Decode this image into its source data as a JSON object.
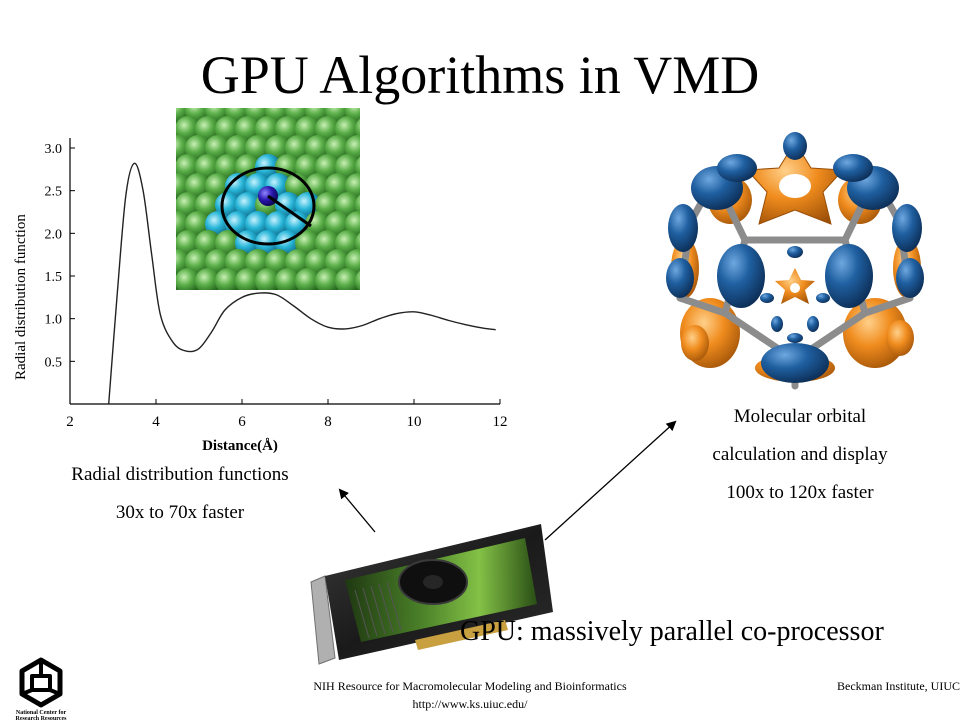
{
  "slide": {
    "title": "GPU Algorithms in VMD",
    "rdf_caption_line1": "Radial distribution functions",
    "rdf_caption_line2": "30x to 70x faster",
    "mo_caption_line1": "Molecular orbital",
    "mo_caption_line2": "calculation and display",
    "mo_caption_line3": "100x to 120x faster",
    "gpu_caption": "GPU: massively parallel co-processor"
  },
  "chart_data": {
    "type": "line",
    "xlabel": "Distance(Å)",
    "ylabel": "Radial distribution function",
    "xlim": [
      2,
      12
    ],
    "ylim": [
      0,
      3.0
    ],
    "x_ticks": [
      "2",
      "4",
      "6",
      "8",
      "10",
      "12"
    ],
    "y_ticks": [
      "0.5",
      "1.0",
      "1.5",
      "2.0",
      "2.5",
      "3.0"
    ],
    "series": [
      {
        "x": [
          2.9,
          3.1,
          3.3,
          3.5,
          3.7,
          3.9,
          4.1,
          4.4,
          4.7,
          5.0,
          5.3,
          5.6,
          6.0,
          6.4,
          6.8,
          7.2,
          7.6,
          8.0,
          8.4,
          8.8,
          9.2,
          9.6,
          10.0,
          10.4,
          10.8,
          11.2,
          11.6,
          11.9
        ],
        "y": [
          0.0,
          1.3,
          2.45,
          2.82,
          2.5,
          1.75,
          1.05,
          0.72,
          0.62,
          0.65,
          0.85,
          1.1,
          1.25,
          1.3,
          1.28,
          1.15,
          1.0,
          0.9,
          0.88,
          0.92,
          1.0,
          1.06,
          1.08,
          1.04,
          0.98,
          0.93,
          0.89,
          0.87
        ]
      }
    ]
  },
  "footer": {
    "line1": "NIH Resource for Macromolecular Modeling and Bioinformatics",
    "line2": "http://www.ks.uiuc.edu/",
    "right": "Beckman Institute, UIUC",
    "logo_text": "National Center for Research Resources"
  },
  "colors": {
    "orbital_blue": "#1f5fa0",
    "orbital_orange": "#f08c1e",
    "bond_gray": "#8c8c8c",
    "atom_green": "#5aae48",
    "atom_cyan": "#28b6d8",
    "atom_blue": "#2a18b0",
    "gpu_green": "#4f8a2a"
  }
}
